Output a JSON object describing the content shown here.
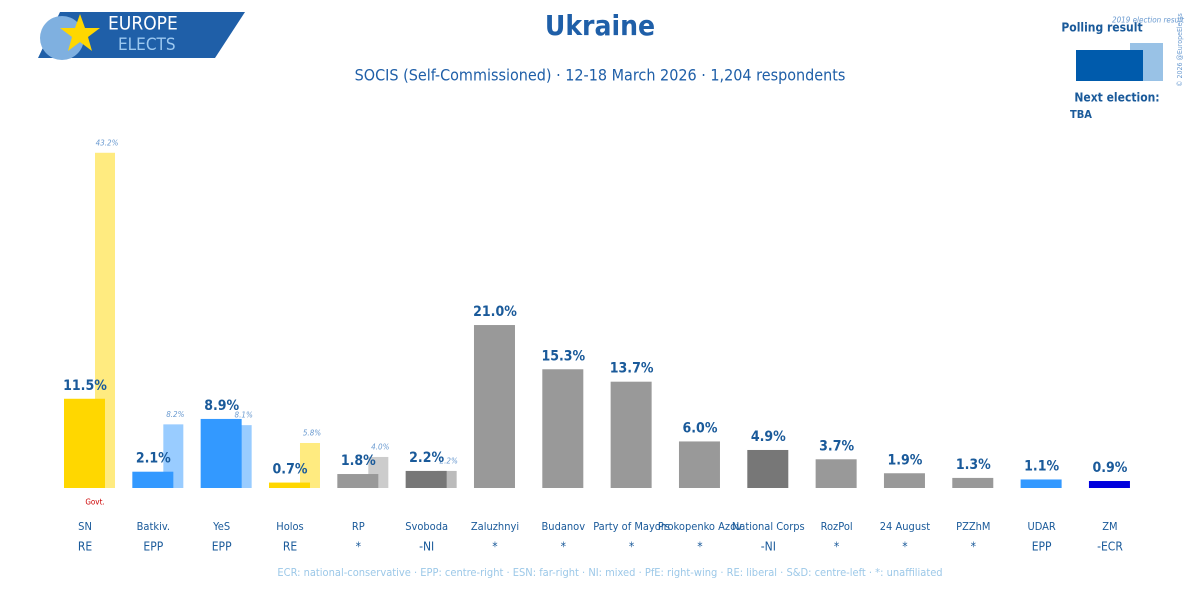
{
  "chart_data": {
    "type": "bar",
    "title": "Ukraine",
    "subtitle": "SOCIS (Self-Commissioned) · 12-18 March 2026 · 1,204 respondents",
    "logo": {
      "line1": "EUROPE",
      "line2": "ELECTS"
    },
    "next_election": {
      "label": "Next election:",
      "value": "TBA"
    },
    "copyright": "© 2026 @EuropeElects",
    "annotation": "Govt.",
    "footer": "ECR: national-conservative · EPP: centre-right · ESN: far-right · NI: mixed · PfE: right-wing · RE: liberal · S&D: centre-left · *: unaffiliated",
    "categories": [
      "SN",
      "Batkiv.",
      "YeS",
      "Holos",
      "RP",
      "Svoboda",
      "Zaluzhnyi",
      "Budanov",
      "Party of Mayors",
      "Prokopenko Azov",
      "National Corps",
      "RozPol",
      "24 August",
      "PZZhM",
      "UDAR",
      "ZM"
    ],
    "groups": [
      "RE",
      "EPP",
      "EPP",
      "RE",
      "*",
      "-NI",
      "*",
      "*",
      "*",
      "*",
      "-NI",
      "*",
      "*",
      "*",
      "EPP",
      "-ECR"
    ],
    "series": [
      {
        "name": "Polling result",
        "color": "#005bac",
        "values": [
          11.5,
          2.1,
          8.9,
          0.7,
          1.8,
          2.2,
          21.0,
          15.3,
          13.7,
          6.0,
          4.9,
          3.7,
          1.9,
          1.3,
          1.1,
          0.9
        ],
        "value_labels": [
          "11.5%",
          "2.1%",
          "8.9%",
          "0.7%",
          "1.8%",
          "2.2%",
          "21.0%",
          "15.3%",
          "13.7%",
          "6.0%",
          "4.9%",
          "3.7%",
          "1.9%",
          "1.3%",
          "1.1%",
          "0.9%"
        ],
        "colors": [
          "#ffd700",
          "#3399ff",
          "#3399ff",
          "#ffd700",
          "#999999",
          "#777777",
          "#999999",
          "#999999",
          "#999999",
          "#999999",
          "#777777",
          "#999999",
          "#999999",
          "#999999",
          "#3399ff",
          "#0000dd"
        ]
      },
      {
        "name": "2019 election result",
        "color": "#99c2e6",
        "values": [
          43.2,
          8.2,
          8.1,
          5.8,
          4.0,
          2.2,
          null,
          null,
          null,
          null,
          null,
          null,
          null,
          null,
          null,
          null
        ],
        "value_labels": [
          "43.2%",
          "8.2%",
          "8.1%",
          "5.8%",
          "4.0%",
          "2.2%",
          null,
          null,
          null,
          null,
          null,
          null,
          null,
          null,
          null,
          null
        ],
        "colors": [
          "#ffeb80",
          "#99ccff",
          "#99ccff",
          "#ffeb80",
          "#cccccc",
          "#bbbbbb",
          null,
          null,
          null,
          null,
          null,
          null,
          null,
          null,
          null,
          null
        ]
      }
    ]
  }
}
